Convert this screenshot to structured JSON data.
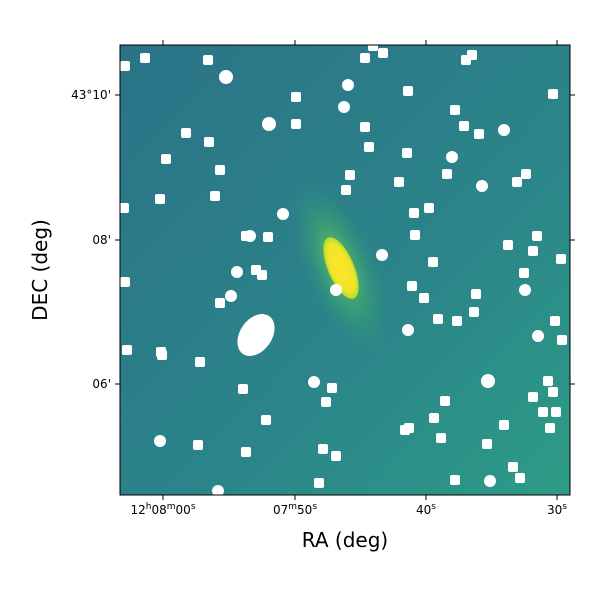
{
  "x_axis": {
    "label": "RA (deg)",
    "ticks": [
      [
        "12",
        "h",
        "08",
        "m",
        "00",
        "s"
      ],
      [
        "07",
        "m",
        "50",
        "s"
      ],
      [
        "40",
        "s"
      ],
      [
        "30",
        "s"
      ]
    ]
  },
  "y_axis": {
    "label": "DEC (deg)",
    "ticks": [
      "43°10'",
      "08'",
      "06'"
    ]
  }
}
